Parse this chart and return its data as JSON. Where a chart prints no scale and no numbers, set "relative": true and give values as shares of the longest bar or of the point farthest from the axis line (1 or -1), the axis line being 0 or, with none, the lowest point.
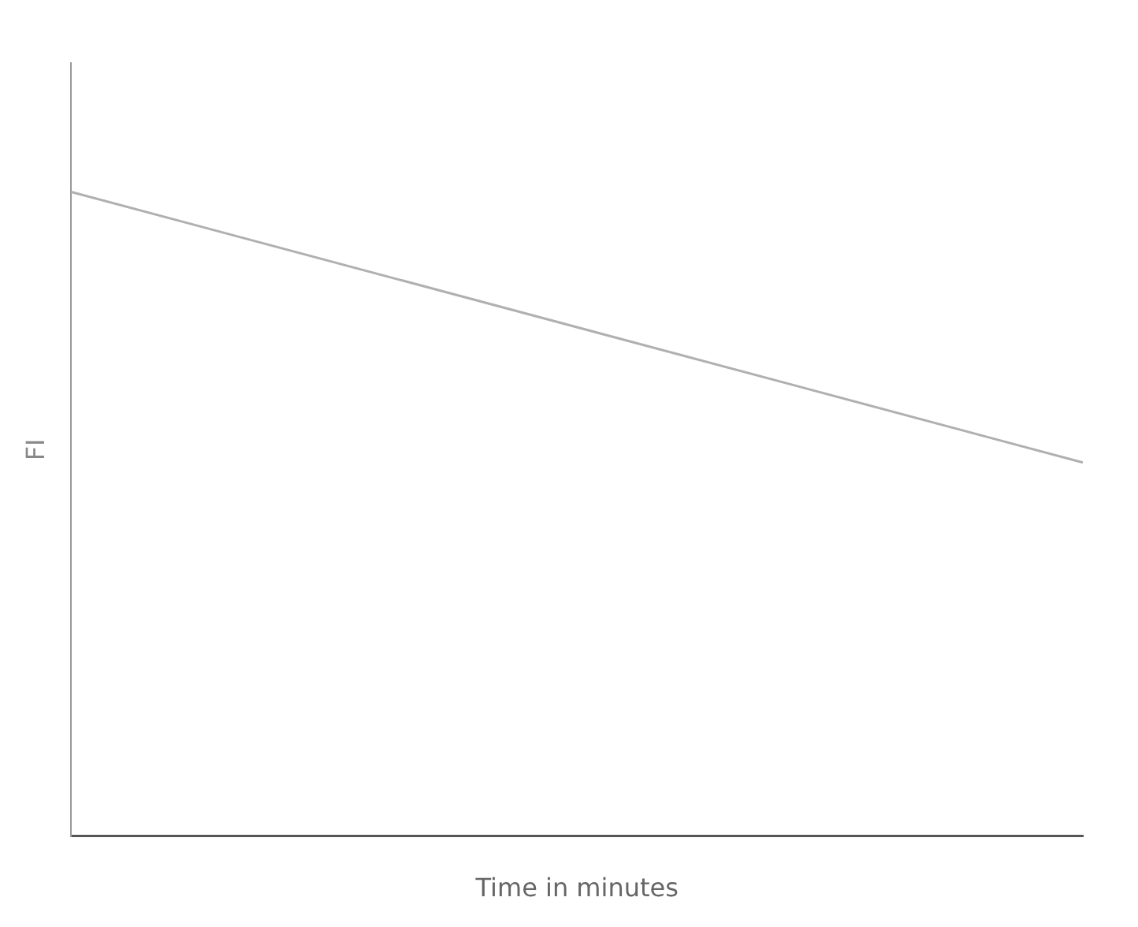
{
  "chart_data": {
    "type": "line",
    "xlabel": "Time in minutes",
    "ylabel": "FI",
    "relative": true,
    "categories": [
      null,
      null
    ],
    "series": [
      {
        "color": "#b0b0b0",
        "values": [
          1,
          0.58
        ]
      }
    ],
    "marker": "none",
    "line_style": "solid",
    "grid": false,
    "legend": false
  }
}
